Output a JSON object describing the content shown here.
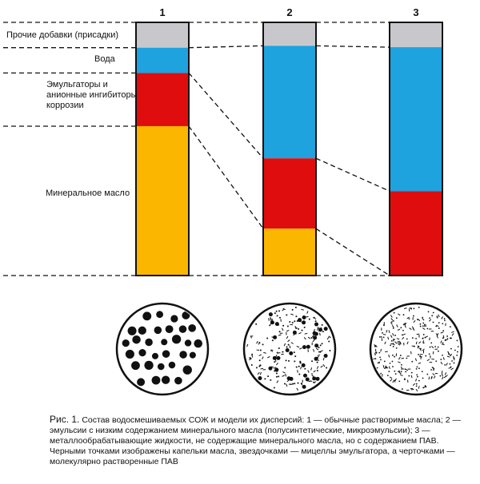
{
  "labels": {
    "additives": "Прочие добавки (присадки)",
    "water": "Вода",
    "emulsifiers": "Эмульгаторы и\nанионные ингибиторы\nкоррозии",
    "mineral_oil": "Минеральное масло"
  },
  "columns": [
    {
      "number": "1",
      "composition": {
        "additives": 10,
        "water": 10,
        "emulsifiers": 21,
        "mineral_oil": 59
      }
    },
    {
      "number": "2",
      "composition": {
        "additives": 10,
        "water": 48,
        "emulsifiers": 30,
        "mineral_oil": 20
      }
    },
    {
      "number": "3",
      "composition": {
        "additives": 10,
        "water": 58,
        "emulsifiers": 34,
        "mineral_oil": 0
      }
    }
  ],
  "colors": {
    "additives": "#c8c8cc",
    "water": "#1ea3df",
    "emulsifiers": "#df0d0d",
    "mineral_oil": "#fbb600"
  },
  "models": [
    {
      "column": "1",
      "content": "oil droplets"
    },
    {
      "column": "2",
      "content": "micelles, oil droplets, dispersed surfactant"
    },
    {
      "column": "3",
      "content": "micelles and molecularly dissolved surfactant"
    }
  ],
  "caption": {
    "prefix": "Рис. 1.",
    "text": "Состав водосмешиваемых СОЖ и модели их дисперсий: 1 — обычные растворимые масла; 2 — эмульсии с низким содержанием минерального масла (полусинтетические, микроэмульсии); 3 — металлообрабатывающие жидкости, не содержащие минерального масла, но с содержанием ПАВ. Черными точками изображены капельки масла, звездочками — мицеллы эмульгатора, а черточками — молекулярно растворенные ПАВ"
  }
}
